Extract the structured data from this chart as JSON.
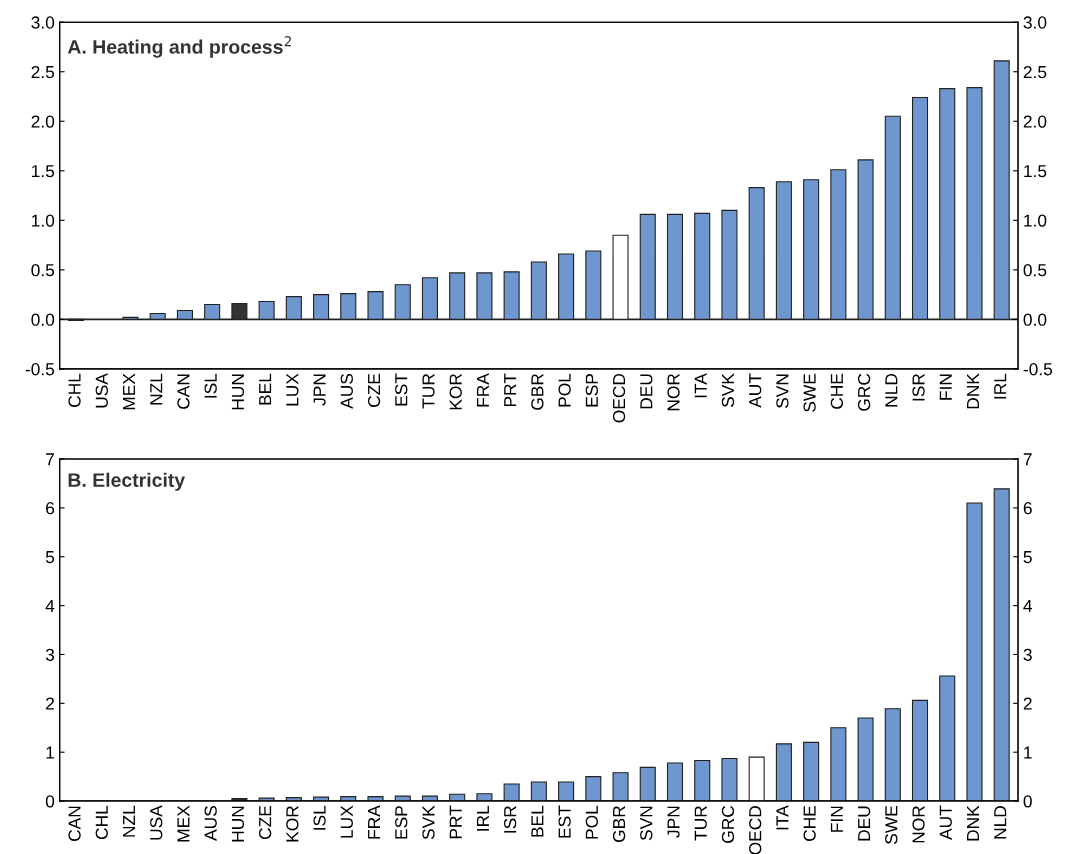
{
  "chart_data": [
    {
      "type": "bar",
      "title": "A. Heating and process$^{2}$",
      "categories": [
        "CHL",
        "USA",
        "MEX",
        "NZL",
        "CAN",
        "ISL",
        "HUN",
        "BEL",
        "LUX",
        "JPN",
        "AUS",
        "CZE",
        "EST",
        "TUR",
        "KOR",
        "FRA",
        "PRT",
        "GBR",
        "POL",
        "ESP",
        "OECD",
        "DEU",
        "NOR",
        "ITA",
        "SVK",
        "AUT",
        "SVN",
        "SWE",
        "CHE",
        "GRC",
        "NLD",
        "ISR",
        "FIN",
        "DNK",
        "IRL"
      ],
      "values": [
        -0.01,
        0,
        0.02,
        0.06,
        0.09,
        0.15,
        0.16,
        0.18,
        0.23,
        0.25,
        0.26,
        0.28,
        0.35,
        0.42,
        0.47,
        0.47,
        0.48,
        0.58,
        0.66,
        0.69,
        0.85,
        1.06,
        1.06,
        1.07,
        1.1,
        1.33,
        1.39,
        1.41,
        1.51,
        1.61,
        2.05,
        2.24,
        2.33,
        2.34,
        2.61
      ],
      "colors": [
        "#6f97cf",
        "#6f97cf",
        "#6f97cf",
        "#6f97cf",
        "#6f97cf",
        "#6f97cf",
        "#333333",
        "#6f97cf",
        "#6f97cf",
        "#6f97cf",
        "#6f97cf",
        "#6f97cf",
        "#6f97cf",
        "#6f97cf",
        "#6f97cf",
        "#6f97cf",
        "#6f97cf",
        "#6f97cf",
        "#6f97cf",
        "#6f97cf",
        "#ffffff",
        "#6f97cf",
        "#6f97cf",
        "#6f97cf",
        "#6f97cf",
        "#6f97cf",
        "#6f97cf",
        "#6f97cf",
        "#6f97cf",
        "#6f97cf",
        "#6f97cf",
        "#6f97cf",
        "#6f97cf",
        "#6f97cf",
        "#6f97cf"
      ],
      "ylim": [
        -0.5,
        3.0
      ],
      "yticks": [
        -0.5,
        {
          "value": 0,
          "label": "0.0"
        },
        0.5,
        {
          "value": 1,
          "label": "1.0"
        },
        1.5,
        {
          "value": 2,
          "label": "2.0"
        },
        2.5,
        {
          "value": 3,
          "label": "3.0"
        }
      ],
      "y2lim": [
        -0.5,
        3.0
      ],
      "y2ticks": [
        -0.5,
        {
          "value": 0,
          "label": "0.0"
        },
        0.5,
        {
          "value": 1,
          "label": "1.0"
        },
        1.5,
        {
          "value": 2,
          "label": "2.0"
        },
        2.5,
        {
          "value": 3,
          "label": "3.0"
        }
      ]
    },
    {
      "type": "bar",
      "title": "B. Electricity",
      "categories": [
        "CAN",
        "CHL",
        "NZL",
        "USA",
        "MEX",
        "AUS",
        "HUN",
        "CZE",
        "KOR",
        "ISL",
        "LUX",
        "FRA",
        "ESP",
        "SVK",
        "PRT",
        "IRL",
        "ISR",
        "BEL",
        "EST",
        "POL",
        "GBR",
        "SVN",
        "JPN",
        "TUR",
        "GRC",
        "OECD",
        "ITA",
        "CHE",
        "FIN",
        "DEU",
        "SWE",
        "NOR",
        "AUT",
        "DNK",
        "NLD"
      ],
      "values": [
        0,
        0,
        0,
        0,
        0,
        0,
        0.05,
        0.06,
        0.07,
        0.08,
        0.09,
        0.09,
        0.1,
        0.1,
        0.14,
        0.15,
        0.35,
        0.39,
        0.39,
        0.5,
        0.58,
        0.69,
        0.78,
        0.83,
        0.87,
        0.9,
        1.17,
        1.2,
        1.5,
        1.7,
        1.89,
        2.06,
        2.56,
        6.1,
        6.39
      ],
      "colors": [
        "#6f97cf",
        "#6f97cf",
        "#6f97cf",
        "#6f97cf",
        "#6f97cf",
        "#6f97cf",
        "#333333",
        "#6f97cf",
        "#6f97cf",
        "#6f97cf",
        "#6f97cf",
        "#6f97cf",
        "#6f97cf",
        "#6f97cf",
        "#6f97cf",
        "#6f97cf",
        "#6f97cf",
        "#6f97cf",
        "#6f97cf",
        "#6f97cf",
        "#6f97cf",
        "#6f97cf",
        "#6f97cf",
        "#6f97cf",
        "#6f97cf",
        "#ffffff",
        "#6f97cf",
        "#6f97cf",
        "#6f97cf",
        "#6f97cf",
        "#6f97cf",
        "#6f97cf",
        "#6f97cf",
        "#6f97cf",
        "#6f97cf"
      ],
      "ylim": [
        0,
        7
      ],
      "yticks": [
        0,
        1,
        2,
        3,
        4,
        5,
        6,
        7
      ],
      "y2lim": [
        0,
        7
      ],
      "y2ticks": [
        0,
        1,
        2,
        3,
        4,
        5,
        6,
        7
      ]
    }
  ]
}
